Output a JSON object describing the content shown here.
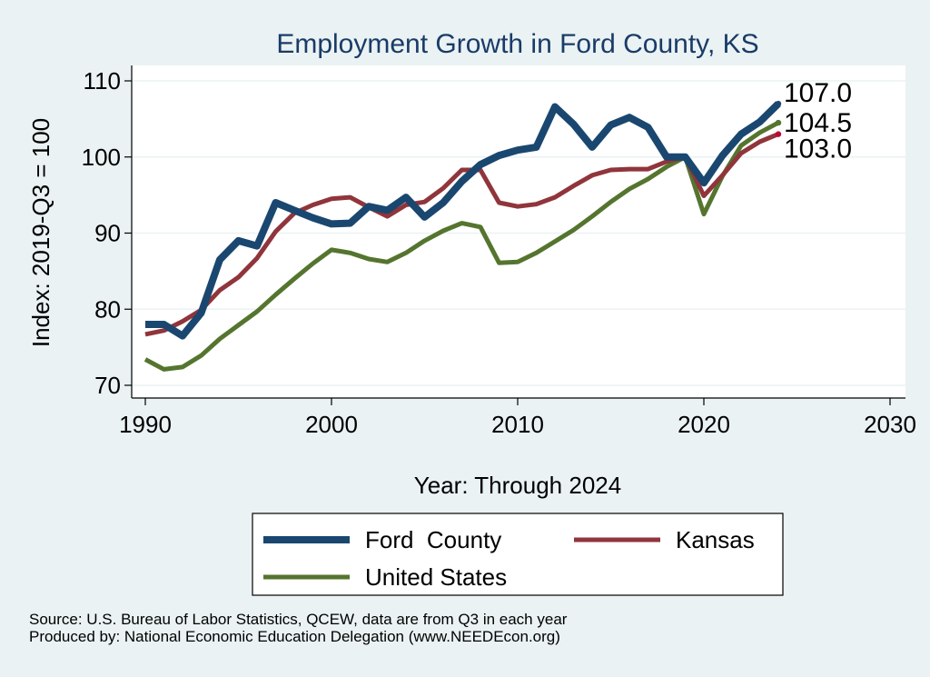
{
  "chart_data": {
    "type": "line",
    "title": "Employment Growth in Ford County, KS",
    "xlabel": "Year: Through 2024",
    "ylabel": "Index: 2019-Q3 = 100",
    "xlim": [
      1990,
      2030
    ],
    "ylim": [
      70,
      110
    ],
    "xticks": [
      1990,
      2000,
      2010,
      2020,
      2030
    ],
    "yticks": [
      70,
      80,
      90,
      100,
      110
    ],
    "grid": true,
    "legend_position": "bottom",
    "x": [
      1990,
      1991,
      1992,
      1993,
      1994,
      1995,
      1996,
      1997,
      1998,
      1999,
      2000,
      2001,
      2002,
      2003,
      2004,
      2005,
      2006,
      2007,
      2008,
      2009,
      2010,
      2011,
      2012,
      2013,
      2014,
      2015,
      2016,
      2017,
      2018,
      2019,
      2020,
      2021,
      2022,
      2023,
      2024
    ],
    "series": [
      {
        "name": "Ford  County",
        "color": "#1a476f",
        "values": [
          78.0,
          78.0,
          76.5,
          79.5,
          86.5,
          89.0,
          88.3,
          94.0,
          93.0,
          92.0,
          91.2,
          91.3,
          93.5,
          93.0,
          94.7,
          92.1,
          94.0,
          96.8,
          99.0,
          100.2,
          100.9,
          101.3,
          106.6,
          104.3,
          101.3,
          104.2,
          105.2,
          103.9,
          100.0,
          100.0,
          96.6,
          100.2,
          103.0,
          104.6,
          107.0
        ],
        "end_label": "107.0"
      },
      {
        "name": "Kansas",
        "color": "#90353b",
        "values": [
          76.7,
          77.2,
          78.4,
          79.9,
          82.5,
          84.2,
          86.7,
          90.2,
          92.6,
          93.7,
          94.5,
          94.7,
          93.4,
          92.2,
          93.7,
          94.1,
          95.9,
          98.3,
          98.3,
          94.0,
          93.5,
          93.8,
          94.7,
          96.2,
          97.6,
          98.3,
          98.4,
          98.4,
          99.4,
          100.0,
          94.9,
          97.6,
          100.5,
          102.0,
          103.0
        ],
        "end_label": "103.0"
      },
      {
        "name": "United States",
        "color": "#55752f",
        "values": [
          73.4,
          72.1,
          72.4,
          73.9,
          76.1,
          77.9,
          79.7,
          81.9,
          84.0,
          86.0,
          87.8,
          87.4,
          86.6,
          86.2,
          87.4,
          89.0,
          90.3,
          91.3,
          90.8,
          86.1,
          86.2,
          87.4,
          88.9,
          90.4,
          92.2,
          94.1,
          95.8,
          97.1,
          98.7,
          100.0,
          92.5,
          97.5,
          101.5,
          103.2,
          104.5
        ],
        "end_label": "104.5"
      }
    ]
  },
  "footnotes": {
    "source": "Source: U.S. Bureau of Labor Statistics, QCEW, data are from Q3 in each year",
    "produced": "Produced by: National Economic Education Delegation (www.NEEDEcon.org)"
  }
}
